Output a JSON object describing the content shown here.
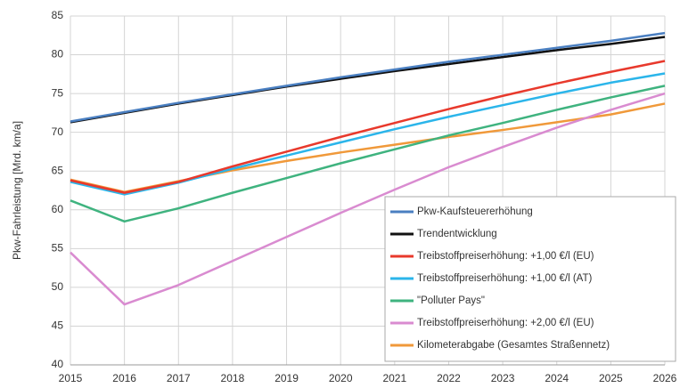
{
  "chart_data": {
    "type": "line",
    "y_label": "Pkw-Fahrleistung [Mrd. km/a]",
    "x": [
      2015,
      2016,
      2017,
      2018,
      2019,
      2020,
      2021,
      2022,
      2023,
      2024,
      2025,
      2026
    ],
    "xlim": [
      2015,
      2026
    ],
    "xticks": [
      2015,
      2016,
      2017,
      2018,
      2019,
      2020,
      2021,
      2022,
      2023,
      2024,
      2025,
      2026
    ],
    "ylim": [
      40,
      85
    ],
    "yticks": [
      40,
      45,
      50,
      55,
      60,
      65,
      70,
      75,
      80,
      85
    ],
    "grid": true,
    "legend": "lower right",
    "series": [
      {
        "name": "Pkw-Kaufsteuererhöhung",
        "color": "#4a7fc1",
        "values": [
          71.4,
          72.6,
          73.8,
          74.9,
          76.0,
          77.1,
          78.1,
          79.1,
          80.0,
          80.9,
          81.8,
          82.8
        ]
      },
      {
        "name": "Trendentwicklung",
        "color": "#111111",
        "values": [
          71.3,
          72.5,
          73.7,
          74.8,
          75.9,
          76.9,
          77.9,
          78.8,
          79.7,
          80.6,
          81.4,
          82.3
        ]
      },
      {
        "name": "Treibstoffpreiserhöhung: +1,00 €/l (EU)",
        "color": "#e8392c",
        "values": [
          63.8,
          62.2,
          63.6,
          65.6,
          67.5,
          69.4,
          71.2,
          73.0,
          74.7,
          76.3,
          77.8,
          79.2
        ]
      },
      {
        "name": "Treibstoffpreiserhöhung: +1,00 €/l (AT)",
        "color": "#2bb5ea",
        "values": [
          63.6,
          62.0,
          63.5,
          65.3,
          67.0,
          68.7,
          70.4,
          72.0,
          73.5,
          75.0,
          76.4,
          77.6
        ]
      },
      {
        "name": "\"Polluter Pays\"",
        "color": "#3fb37f",
        "values": [
          61.2,
          58.5,
          60.2,
          62.2,
          64.1,
          66.0,
          67.8,
          69.6,
          71.2,
          72.9,
          74.5,
          76.0
        ]
      },
      {
        "name": "Treibstoffpreiserhöhung: +2,00 €/l (EU)",
        "color": "#d98bd0",
        "values": [
          54.5,
          47.8,
          50.3,
          53.4,
          56.5,
          59.6,
          62.6,
          65.5,
          68.1,
          70.6,
          72.9,
          75.0
        ]
      },
      {
        "name": "Kilometerabgabe (Gesamtes Straßennetz)",
        "color": "#f0993a",
        "values": [
          63.9,
          62.3,
          63.7,
          65.1,
          66.3,
          67.4,
          68.4,
          69.4,
          70.3,
          71.3,
          72.3,
          73.7
        ]
      }
    ]
  }
}
